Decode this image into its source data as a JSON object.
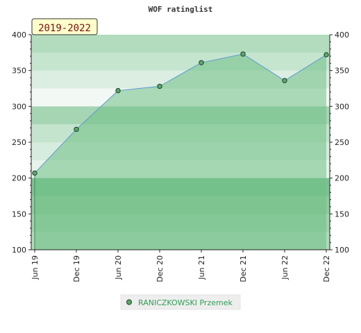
{
  "chart_data": {
    "type": "area",
    "title": "WOF ratinglist",
    "period_label": "2019-2022",
    "categories": [
      "Jun 19",
      "Dec 19",
      "Jun 20",
      "Dec 20",
      "Jun 21",
      "Dec 21",
      "Jun 22",
      "Dec 22"
    ],
    "series": [
      {
        "name": "RANICZKOWSKI Przemek",
        "values": [
          207,
          268,
          322,
          328,
          361,
          373,
          336,
          372
        ]
      }
    ],
    "ylim": [
      100,
      400
    ],
    "yticks": [
      100,
      150,
      200,
      250,
      300,
      350,
      400
    ],
    "grid": true,
    "legend_position": "bottom-center",
    "colors": {
      "line": "#5b9bd5",
      "fill": "#6fbf85",
      "marker": "#5aaa6a",
      "band_dark": "#7cc394",
      "band_light": "#f2f8f3",
      "period_bg": "#ffffcc",
      "period_text": "#7a0c0c",
      "legend_bg": "#eeeeee",
      "legend_text": "#2f9e56"
    }
  }
}
